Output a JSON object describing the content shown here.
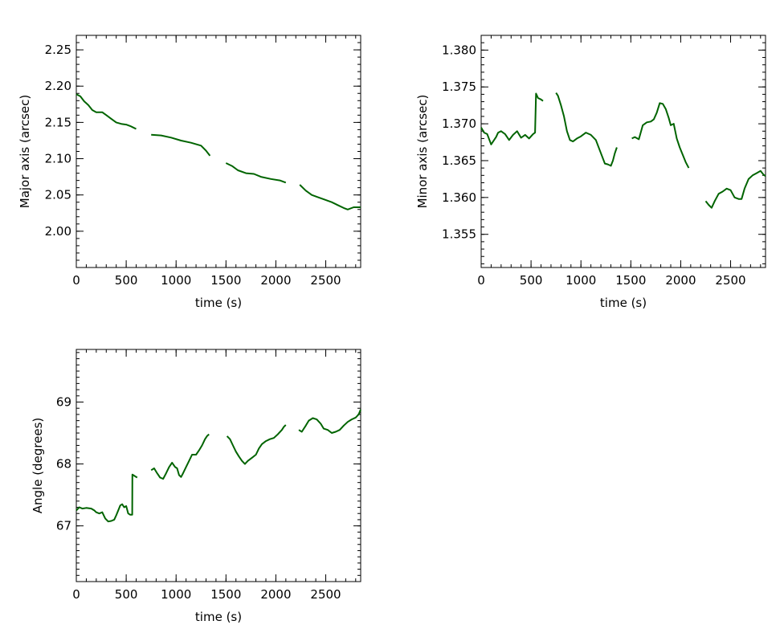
{
  "chart_data": [
    {
      "id": "major",
      "type": "line",
      "title": "",
      "xlabel": "time (s)",
      "ylabel": "Major axis (arcsec)",
      "xlim": [
        0,
        2850
      ],
      "ylim": [
        1.95,
        2.27
      ],
      "xticks": [
        0,
        500,
        1000,
        1500,
        2000,
        2500
      ],
      "xtick_labels": [
        "0",
        "500",
        "1000",
        "1500",
        "2000",
        "2500"
      ],
      "yticks": [
        2.0,
        2.05,
        2.1,
        2.15,
        2.2,
        2.25
      ],
      "ytick_labels": [
        "2.00",
        "2.05",
        "2.10",
        "2.15",
        "2.20",
        "2.25"
      ],
      "grid": false,
      "color": "#006400",
      "segments": [
        [
          [
            0,
            2.189
          ],
          [
            40,
            2.186
          ],
          [
            80,
            2.179
          ],
          [
            120,
            2.174
          ],
          [
            160,
            2.167
          ],
          [
            200,
            2.164
          ],
          [
            260,
            2.164
          ],
          [
            300,
            2.16
          ],
          [
            350,
            2.155
          ],
          [
            400,
            2.15
          ],
          [
            450,
            2.148
          ],
          [
            500,
            2.147
          ],
          [
            540,
            2.145
          ],
          [
            570,
            2.143
          ],
          [
            600,
            2.141
          ]
        ],
        [
          [
            750,
            2.133
          ],
          [
            850,
            2.132
          ],
          [
            950,
            2.129
          ],
          [
            1050,
            2.125
          ],
          [
            1150,
            2.122
          ],
          [
            1250,
            2.118
          ],
          [
            1300,
            2.111
          ],
          [
            1340,
            2.104
          ]
        ],
        [
          [
            1500,
            2.094
          ],
          [
            1560,
            2.09
          ],
          [
            1620,
            2.084
          ],
          [
            1700,
            2.08
          ],
          [
            1780,
            2.079
          ],
          [
            1850,
            2.075
          ],
          [
            1950,
            2.072
          ],
          [
            2040,
            2.07
          ],
          [
            2080,
            2.068
          ],
          [
            2100,
            2.067
          ]
        ],
        [
          [
            2240,
            2.064
          ],
          [
            2300,
            2.056
          ],
          [
            2360,
            2.05
          ],
          [
            2420,
            2.047
          ],
          [
            2480,
            2.044
          ],
          [
            2560,
            2.04
          ],
          [
            2620,
            2.036
          ],
          [
            2680,
            2.032
          ],
          [
            2720,
            2.03
          ],
          [
            2780,
            2.033
          ],
          [
            2850,
            2.033
          ]
        ]
      ]
    },
    {
      "id": "minor",
      "type": "line",
      "title": "",
      "xlabel": "time (s)",
      "ylabel": "Minor axis (arcsec)",
      "xlim": [
        0,
        2850
      ],
      "ylim": [
        1.3505,
        1.382
      ],
      "xticks": [
        0,
        500,
        1000,
        1500,
        2000,
        2500
      ],
      "xtick_labels": [
        "0",
        "500",
        "1000",
        "1500",
        "2000",
        "2500"
      ],
      "yticks": [
        1.355,
        1.36,
        1.365,
        1.37,
        1.375,
        1.38
      ],
      "ytick_labels": [
        "1.355",
        "1.360",
        "1.365",
        "1.370",
        "1.375",
        "1.380"
      ],
      "grid": false,
      "color": "#006400",
      "segments": [
        [
          [
            0,
            1.3695
          ],
          [
            30,
            1.3688
          ],
          [
            60,
            1.3686
          ],
          [
            100,
            1.3672
          ],
          [
            150,
            1.3682
          ],
          [
            170,
            1.3688
          ],
          [
            200,
            1.369
          ],
          [
            240,
            1.3686
          ],
          [
            280,
            1.3678
          ],
          [
            320,
            1.3685
          ],
          [
            360,
            1.369
          ],
          [
            400,
            1.3681
          ],
          [
            440,
            1.3685
          ],
          [
            480,
            1.368
          ],
          [
            520,
            1.3686
          ],
          [
            540,
            1.3688
          ],
          [
            550,
            1.3741
          ],
          [
            570,
            1.3735
          ],
          [
            600,
            1.3733
          ],
          [
            620,
            1.3731
          ]
        ],
        [
          [
            750,
            1.3742
          ],
          [
            770,
            1.3738
          ],
          [
            800,
            1.3725
          ],
          [
            830,
            1.371
          ],
          [
            860,
            1.369
          ],
          [
            890,
            1.3678
          ],
          [
            920,
            1.3676
          ],
          [
            960,
            1.368
          ],
          [
            1000,
            1.3683
          ],
          [
            1050,
            1.3688
          ],
          [
            1100,
            1.3685
          ],
          [
            1150,
            1.3678
          ],
          [
            1200,
            1.366
          ],
          [
            1240,
            1.3646
          ],
          [
            1270,
            1.3645
          ],
          [
            1300,
            1.3643
          ],
          [
            1320,
            1.365
          ],
          [
            1340,
            1.366
          ],
          [
            1360,
            1.3668
          ]
        ],
        [
          [
            1510,
            1.368
          ],
          [
            1540,
            1.3682
          ],
          [
            1580,
            1.3679
          ],
          [
            1620,
            1.3698
          ],
          [
            1660,
            1.3702
          ],
          [
            1700,
            1.3703
          ],
          [
            1730,
            1.3706
          ],
          [
            1760,
            1.3715
          ],
          [
            1790,
            1.3728
          ],
          [
            1820,
            1.3727
          ],
          [
            1850,
            1.372
          ],
          [
            1880,
            1.3708
          ],
          [
            1900,
            1.3698
          ],
          [
            1930,
            1.37
          ],
          [
            1960,
            1.368
          ],
          [
            1990,
            1.3668
          ],
          [
            2020,
            1.3658
          ],
          [
            2050,
            1.3648
          ],
          [
            2080,
            1.364
          ]
        ],
        [
          [
            2250,
            1.3595
          ],
          [
            2280,
            1.359
          ],
          [
            2310,
            1.3586
          ],
          [
            2340,
            1.3595
          ],
          [
            2380,
            1.3605
          ],
          [
            2420,
            1.3608
          ],
          [
            2460,
            1.3612
          ],
          [
            2500,
            1.361
          ],
          [
            2540,
            1.36
          ],
          [
            2580,
            1.3598
          ],
          [
            2610,
            1.3598
          ],
          [
            2640,
            1.3612
          ],
          [
            2680,
            1.3625
          ],
          [
            2720,
            1.363
          ],
          [
            2760,
            1.3633
          ],
          [
            2800,
            1.3636
          ],
          [
            2830,
            1.3631
          ],
          [
            2850,
            1.3629
          ]
        ]
      ]
    },
    {
      "id": "angle",
      "type": "line",
      "title": "",
      "xlabel": "time (s)",
      "ylabel": "Angle (degrees)",
      "xlim": [
        0,
        2850
      ],
      "ylim": [
        66.1,
        69.85
      ],
      "xticks": [
        0,
        500,
        1000,
        1500,
        2000,
        2500
      ],
      "xtick_labels": [
        "0",
        "500",
        "1000",
        "1500",
        "2000",
        "2500"
      ],
      "yticks": [
        67,
        68,
        69
      ],
      "ytick_labels": [
        "67",
        "68",
        "69"
      ],
      "grid": false,
      "color": "#006400",
      "segments": [
        [
          [
            0,
            67.25
          ],
          [
            30,
            67.3
          ],
          [
            60,
            67.28
          ],
          [
            100,
            67.29
          ],
          [
            150,
            67.28
          ],
          [
            180,
            67.25
          ],
          [
            200,
            67.22
          ],
          [
            230,
            67.2
          ],
          [
            260,
            67.22
          ],
          [
            290,
            67.12
          ],
          [
            320,
            67.07
          ],
          [
            350,
            67.08
          ],
          [
            380,
            67.1
          ],
          [
            400,
            67.17
          ],
          [
            420,
            67.25
          ],
          [
            440,
            67.33
          ],
          [
            460,
            67.35
          ],
          [
            480,
            67.3
          ],
          [
            500,
            67.32
          ],
          [
            520,
            67.2
          ],
          [
            540,
            67.18
          ],
          [
            560,
            67.18
          ],
          [
            562,
            67.83
          ],
          [
            590,
            67.8
          ],
          [
            610,
            67.78
          ]
        ],
        [
          [
            750,
            67.9
          ],
          [
            780,
            67.93
          ],
          [
            810,
            67.85
          ],
          [
            840,
            67.78
          ],
          [
            870,
            67.76
          ],
          [
            900,
            67.85
          ],
          [
            930,
            67.95
          ],
          [
            960,
            68.02
          ],
          [
            990,
            67.95
          ],
          [
            1010,
            67.93
          ],
          [
            1030,
            67.82
          ],
          [
            1050,
            67.79
          ],
          [
            1070,
            67.85
          ],
          [
            1100,
            67.95
          ],
          [
            1130,
            68.05
          ],
          [
            1160,
            68.15
          ],
          [
            1200,
            68.15
          ],
          [
            1230,
            68.22
          ],
          [
            1260,
            68.3
          ],
          [
            1290,
            68.4
          ],
          [
            1310,
            68.45
          ],
          [
            1330,
            68.48
          ]
        ],
        [
          [
            1510,
            68.45
          ],
          [
            1540,
            68.4
          ],
          [
            1570,
            68.3
          ],
          [
            1600,
            68.2
          ],
          [
            1630,
            68.12
          ],
          [
            1660,
            68.05
          ],
          [
            1690,
            68.0
          ],
          [
            1720,
            68.05
          ],
          [
            1760,
            68.1
          ],
          [
            1800,
            68.15
          ],
          [
            1830,
            68.25
          ],
          [
            1860,
            68.32
          ],
          [
            1900,
            68.37
          ],
          [
            1940,
            68.4
          ],
          [
            1980,
            68.42
          ],
          [
            2020,
            68.48
          ],
          [
            2060,
            68.55
          ],
          [
            2080,
            68.6
          ],
          [
            2100,
            68.63
          ]
        ],
        [
          [
            2230,
            68.55
          ],
          [
            2260,
            68.52
          ],
          [
            2300,
            68.62
          ],
          [
            2330,
            68.7
          ],
          [
            2370,
            68.74
          ],
          [
            2410,
            68.72
          ],
          [
            2450,
            68.65
          ],
          [
            2480,
            68.57
          ],
          [
            2520,
            68.55
          ],
          [
            2560,
            68.5
          ],
          [
            2600,
            68.52
          ],
          [
            2640,
            68.55
          ],
          [
            2680,
            68.62
          ],
          [
            2720,
            68.68
          ],
          [
            2760,
            68.72
          ],
          [
            2800,
            68.75
          ],
          [
            2830,
            68.8
          ],
          [
            2850,
            68.88
          ]
        ]
      ]
    }
  ]
}
